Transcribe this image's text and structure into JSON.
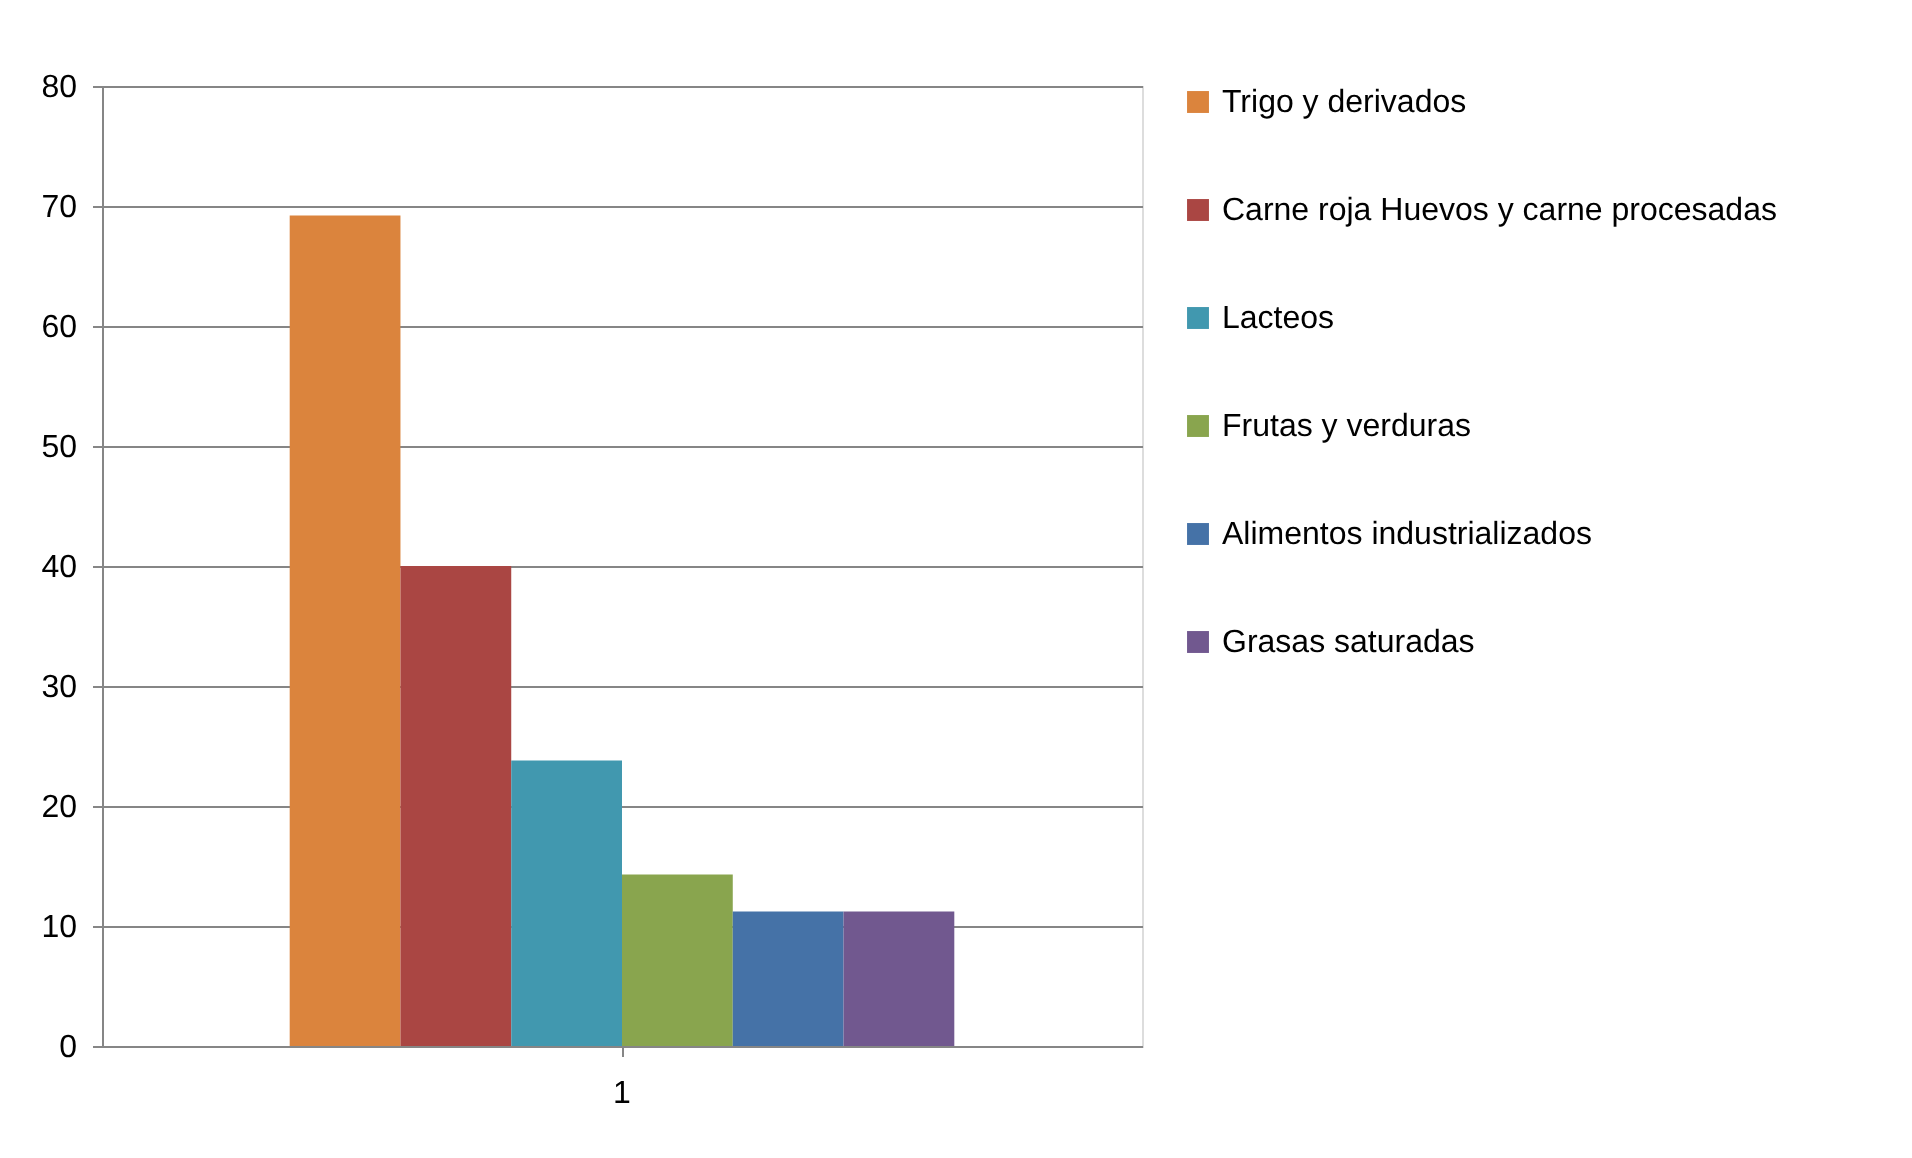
{
  "chart_data": {
    "type": "bar",
    "categories": [
      "1"
    ],
    "series": [
      {
        "name": "Trigo y derivados",
        "color": "#db843d",
        "values": [
          69.2
        ]
      },
      {
        "name": "Carne roja Huevos y carne procesadas",
        "color": "#aa4643",
        "values": [
          40
        ]
      },
      {
        "name": "Lacteos",
        "color": "#4198af",
        "values": [
          23.8
        ]
      },
      {
        "name": "Frutas y verduras",
        "color": "#89a54e",
        "values": [
          14.3
        ]
      },
      {
        "name": "Alimentos industrializados",
        "color": "#4572a7",
        "values": [
          11.2
        ]
      },
      {
        "name": "Grasas saturadas",
        "color": "#71588f",
        "values": [
          11.2
        ]
      }
    ],
    "ylim": [
      0,
      80
    ],
    "yticks": [
      0,
      10,
      20,
      30,
      40,
      50,
      60,
      70,
      80
    ],
    "grid": "y",
    "legend": "right"
  }
}
